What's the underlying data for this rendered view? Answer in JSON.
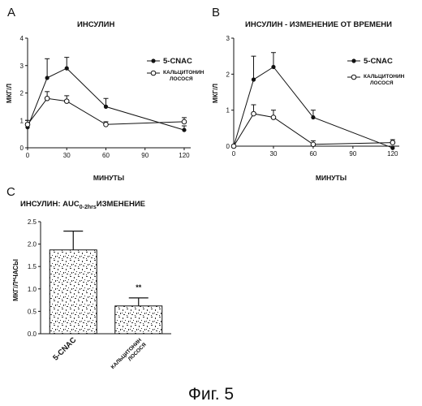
{
  "figure_caption": "Фиг. 5",
  "chart_data": [
    {
      "panel": "A",
      "type": "line",
      "title": "ИНСУЛИН",
      "xlabel": "МИНУТЫ",
      "ylabel": "МКГ/Л",
      "xlim": [
        0,
        125
      ],
      "ylim": [
        0,
        4
      ],
      "xticks": [
        0,
        30,
        60,
        90,
        120
      ],
      "yticks": [
        0,
        1,
        2,
        3,
        4
      ],
      "legend_position": "top-right",
      "series": [
        {
          "name": "5-CNAC",
          "marker": "filled-circle",
          "x": [
            0,
            15,
            30,
            60,
            120
          ],
          "values": [
            0.75,
            2.55,
            2.9,
            1.5,
            0.65
          ],
          "error": [
            0.15,
            0.7,
            0.4,
            0.3,
            0.15
          ]
        },
        {
          "name": "КАЛЬЦИТОНИН ЛОСОСЯ",
          "name_lines": [
            "КАЛЬЦИТОНИН",
            "ЛОСОСЯ"
          ],
          "marker": "open-circle",
          "x": [
            0,
            15,
            30,
            60,
            120
          ],
          "values": [
            0.85,
            1.8,
            1.7,
            0.85,
            0.95
          ],
          "error": [
            0.15,
            0.25,
            0.2,
            0.1,
            0.15
          ]
        }
      ]
    },
    {
      "panel": "B",
      "type": "line",
      "title": "ИНСУЛИН - ИЗМЕНЕНИЕ ОТ ВРЕМЕНИ",
      "xlabel": "МИНУТЫ",
      "ylabel": "МКГ/Л",
      "xlim": [
        0,
        125
      ],
      "ylim": [
        0,
        3
      ],
      "xticks": [
        0,
        30,
        60,
        90,
        120
      ],
      "yticks": [
        0,
        1,
        2,
        3
      ],
      "legend_position": "top-right",
      "series": [
        {
          "name": "5-CNAC",
          "marker": "filled-circle",
          "x": [
            0,
            15,
            30,
            60,
            120
          ],
          "values": [
            0.0,
            1.85,
            2.2,
            0.8,
            -0.05
          ],
          "error": [
            0.0,
            0.65,
            0.4,
            0.2,
            0.05
          ]
        },
        {
          "name": "КАЛЬЦИТОНИН ЛОСОСЯ",
          "name_lines": [
            "КАЛЬЦИТОНИН",
            "ЛОСОСЯ"
          ],
          "marker": "open-circle",
          "x": [
            0,
            15,
            30,
            60,
            120
          ],
          "values": [
            0.0,
            0.9,
            0.8,
            0.05,
            0.1
          ],
          "error": [
            0.0,
            0.25,
            0.2,
            0.1,
            0.08
          ]
        }
      ]
    },
    {
      "panel": "C",
      "type": "bar",
      "title": "ИНСУЛИН: AUC",
      "title_subscript": "0-2hrs",
      "title_suffix": "ИЗМЕНЕНИЕ",
      "xlabel": "",
      "ylabel": "МКГ/Л*ЧАСЫ",
      "ylim": [
        0,
        2.5
      ],
      "yticks": [
        0,
        0.5,
        1.0,
        1.5,
        2.0,
        2.5
      ],
      "ytick_labels": [
        "0.0",
        "0.5",
        "1.0",
        "1.5",
        "2.0",
        "2.5"
      ],
      "categories": [
        "5-CNAC",
        "КАЛЬЦИТОНИН ЛОСОСЯ"
      ],
      "category_lines": [
        [
          "5-CNAC"
        ],
        [
          "КАЛЬЦИТОНИН",
          "ЛОСОСЯ"
        ]
      ],
      "values": [
        1.87,
        0.62
      ],
      "error": [
        0.42,
        0.18
      ],
      "annotations": [
        {
          "category_index": 1,
          "text": "**"
        }
      ]
    }
  ]
}
